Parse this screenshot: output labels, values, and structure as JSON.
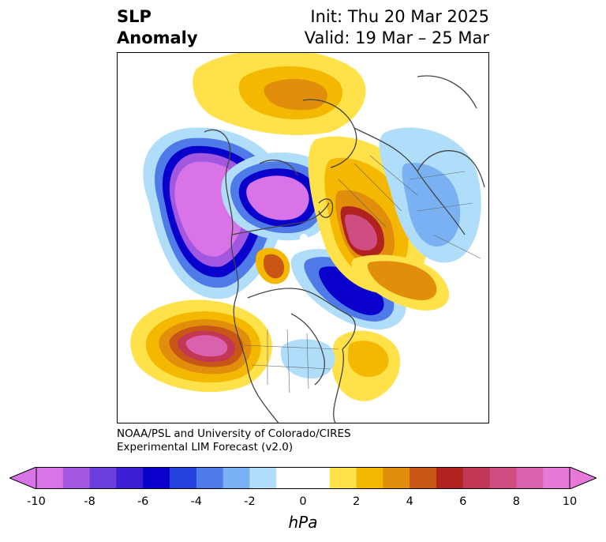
{
  "title": {
    "left_line1": "SLP",
    "left_line2": "Anomaly",
    "init": "Init: Thu 20 Mar 2025",
    "valid": "Valid: 19 Mar – 25 Mar"
  },
  "credit": {
    "line1": "NOAA/PSL and University of Colorado/CIRES",
    "line2": "Experimental LIM Forecast (v2.0)"
  },
  "colorbar": {
    "label": "hPa",
    "ticks": [
      "-10",
      "-8",
      "-6",
      "-4",
      "-2",
      "0",
      "2",
      "4",
      "6",
      "8",
      "10"
    ],
    "colors": [
      "#d874e8",
      "#a257e0",
      "#6b3ddc",
      "#3b1fd2",
      "#0a00cc",
      "#2541dc",
      "#4f7be8",
      "#79b1f2",
      "#b0defa",
      "#ffffff",
      "#ffffff",
      "#ffe14a",
      "#f5b800",
      "#e08e0b",
      "#c85616",
      "#b0221f",
      "#c23756",
      "#cf4d80",
      "#da62ad",
      "#e879d8"
    ]
  },
  "map": {
    "projection": "north-polar-stereographic",
    "anomalies": [
      {
        "region": "North Pacific / Gulf of Alaska",
        "sign": "negative",
        "peak": -10
      },
      {
        "region": "Siberia / East Asia",
        "sign": "negative",
        "peak": -10
      },
      {
        "region": "Western Europe / North Atlantic",
        "sign": "negative",
        "peak": -6
      },
      {
        "region": "Western North America coast",
        "sign": "positive",
        "peak": 10
      },
      {
        "region": "Arctic / Greenland",
        "sign": "positive",
        "peak": 6
      },
      {
        "region": "Ural / Western Russia",
        "sign": "positive",
        "peak": 8
      },
      {
        "region": "Eastern Mediterranean",
        "sign": "positive",
        "peak": 4
      },
      {
        "region": "Subtropical Atlantic",
        "sign": "positive",
        "peak": 2
      }
    ]
  }
}
